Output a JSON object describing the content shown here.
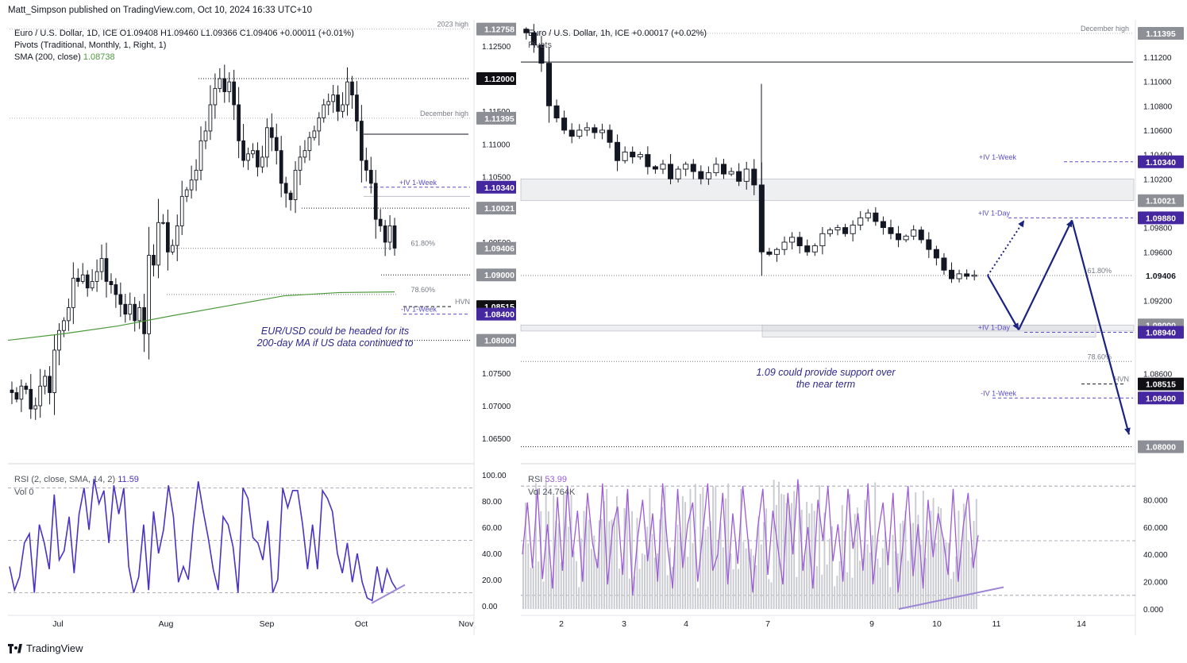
{
  "header": "Matt_Simpson published on TradingView.com, Oct 10, 2024 16:33 UTC+10",
  "footer": {
    "brand": "TradingView"
  },
  "colors": {
    "accent": "#3f2fb4",
    "rsi_line": "#4b32c3",
    "rsi_line_hourly": "#9b5cd6",
    "sma": "#4c9a3c",
    "label_dark": "#0f0f14",
    "label_grey": "#8c8f96",
    "label_purple": "#4527a0",
    "arrow": "#1a237e"
  },
  "left": {
    "legend": {
      "symbol": "Euro / U.S. Dollar, 1D, ICE",
      "ohlc": "O1.09408 H1.09460 L1.09366 C1.09406 +0.00011 (+0.01%)",
      "pivots": "Pivots (Traditional, Monthly, 1, Right, 1)",
      "sma_label": "SMA (200, close)",
      "sma_value": "1.08738"
    },
    "note": "EUR/USD could be headed for its 200-day MA if US data continued to",
    "price_axis": [
      "1.12500",
      "1.11500",
      "1.11000",
      "1.10500",
      "1.09500",
      "1.07500",
      "1.07000",
      "1.06500"
    ],
    "tags": [
      {
        "text": "1.12758",
        "style": "grey",
        "price": 1.12758
      },
      {
        "text": "1.12000",
        "style": "dark",
        "price": 1.12
      },
      {
        "text": "1.11395",
        "style": "grey",
        "price": 1.11395
      },
      {
        "text": "1.10340",
        "style": "purple",
        "price": 1.1034
      },
      {
        "text": "1.10021",
        "style": "grey",
        "price": 1.10021
      },
      {
        "text": "1.09406",
        "style": "grey",
        "price": 1.09406
      },
      {
        "text": "1.09000",
        "style": "grey",
        "price": 1.09
      },
      {
        "text": "1.08515",
        "style": "dark",
        "price": 1.08515
      },
      {
        "text": "1.08400",
        "style": "purple",
        "price": 1.084
      },
      {
        "text": "1.08000",
        "style": "grey",
        "price": 1.08
      }
    ],
    "line_labels": [
      "2023 high",
      "December high",
      "+IV 1-Week",
      "61.80%",
      "78.60%",
      "HVN",
      "-IV 1-Week"
    ],
    "time_axis": [
      "Jul",
      "Aug",
      "Sep",
      "Oct",
      "Nov"
    ],
    "rsi_legend": {
      "label": "RSI (2, close, SMA, 14, 2)",
      "value": "11.59",
      "vol": "Vol",
      "vol_value": "0"
    },
    "rsi_axis": [
      "100.00",
      "80.00",
      "60.00",
      "40.00",
      "20.00",
      "0.00"
    ],
    "rsi_values": [
      30,
      12,
      22,
      48,
      55,
      10,
      62,
      48,
      28,
      85,
      35,
      42,
      68,
      25,
      70,
      90,
      58,
      97,
      78,
      88,
      48,
      92,
      70,
      90,
      30,
      10,
      22,
      62,
      12,
      72,
      40,
      58,
      92,
      68,
      18,
      30,
      20,
      62,
      95,
      72,
      52,
      28,
      12,
      68,
      62,
      45,
      10,
      90,
      82,
      52,
      48,
      35,
      65,
      10,
      20,
      90,
      75,
      88,
      88,
      62,
      28,
      62,
      28,
      88,
      82,
      72,
      40,
      25,
      48,
      18,
      40,
      18,
      6,
      4,
      30,
      10,
      28,
      18,
      12
    ]
  },
  "right": {
    "legend": {
      "symbol": "Euro / U.S. Dollar, 1h, ICE",
      "ohlc": "+0.00017 (+0.02%)",
      "pivots": "Pivots"
    },
    "note": "1.09 could provide support over the near term",
    "price_axis": [
      "1.11200",
      "1.11000",
      "1.10800",
      "1.10600",
      "1.10400",
      "1.10200",
      "1.10000",
      "1.09800",
      "1.09600",
      "1.09200",
      "1.08950",
      "1.08600",
      "1.08000"
    ],
    "tags": [
      {
        "text": "1.11395",
        "style": "grey",
        "price": 1.11395
      },
      {
        "text": "1.10340",
        "style": "purple",
        "price": 1.1034
      },
      {
        "text": "1.10021",
        "style": "grey",
        "price": 1.10021
      },
      {
        "text": "1.09880",
        "style": "purple",
        "price": 1.0988
      },
      {
        "text": "1.09406",
        "style": "plain",
        "price": 1.09406
      },
      {
        "text": "1.09000",
        "style": "grey",
        "price": 1.09
      },
      {
        "text": "1.08940",
        "style": "purple",
        "price": 1.0894
      },
      {
        "text": "1.08515",
        "style": "dark",
        "price": 1.08515
      },
      {
        "text": "1.08400",
        "style": "purple",
        "price": 1.084
      },
      {
        "text": "1.08000",
        "style": "grey",
        "price": 1.08
      }
    ],
    "line_labels": [
      "December high",
      "+IV 1-Week",
      "+IV 1-Day",
      "61.80%",
      "+IV 1-Day",
      "78.60%",
      "HVN",
      "-IV 1-Week"
    ],
    "time_axis": [
      "2",
      "3",
      "4",
      "7",
      "9",
      "10",
      "11",
      "14"
    ],
    "rsi_legend": {
      "label": "RSI",
      "value": "53.99",
      "vol": "Vol",
      "vol_value": "24.764K"
    },
    "rsi_axis": [
      "80.000",
      "60.000",
      "40.000",
      "20.000",
      "0.000"
    ],
    "rsi_values": [
      40,
      78,
      30,
      88,
      22,
      62,
      15,
      82,
      28,
      90,
      38,
      72,
      20,
      85,
      48,
      30,
      92,
      18,
      60,
      75,
      25,
      88,
      10,
      52,
      80,
      35,
      70,
      20,
      92,
      45,
      15,
      88,
      30,
      62,
      78,
      20,
      55,
      92,
      28,
      40,
      85,
      18,
      70,
      33,
      90,
      52,
      12,
      60,
      88,
      25,
      72,
      45,
      18,
      85,
      40,
      95,
      28,
      60,
      15,
      80,
      50,
      90,
      35,
      62,
      20,
      88,
      44,
      70,
      28,
      92,
      18,
      55,
      78,
      32,
      85,
      12,
      48,
      90,
      24,
      62,
      15,
      80,
      38,
      70,
      52,
      25,
      88,
      20,
      60,
      85,
      30,
      54
    ]
  },
  "chart_data": [
    {
      "type": "candlestick",
      "title": "Euro / U.S. Dollar, 1D, ICE",
      "timeframe": "1D",
      "x_labels": [
        "Jul",
        "Aug",
        "Sep",
        "Oct",
        "Nov"
      ],
      "ylim": [
        1.0615,
        1.1285
      ],
      "close_path": [
        1.072,
        1.071,
        1.073,
        1.0725,
        1.0695,
        1.07,
        1.073,
        1.0745,
        1.072,
        1.0785,
        1.0815,
        1.083,
        1.085,
        1.0895,
        1.089,
        1.09,
        1.088,
        1.089,
        1.0905,
        1.0925,
        1.089,
        1.0885,
        1.087,
        1.0855,
        1.084,
        1.0855,
        1.083,
        1.085,
        1.081,
        1.093,
        1.0915,
        1.098,
        1.098,
        1.0935,
        1.0945,
        1.0975,
        1.102,
        1.103,
        1.1045,
        1.106,
        1.1105,
        1.112,
        1.116,
        1.1185,
        1.12,
        1.118,
        1.1195,
        1.116,
        1.1105,
        1.1075,
        1.1085,
        1.109,
        1.1065,
        1.108,
        1.1125,
        1.111,
        1.109,
        1.104,
        1.1025,
        1.1015,
        1.106,
        1.108,
        1.109,
        1.111,
        1.112,
        1.114,
        1.116,
        1.1165,
        1.1175,
        1.115,
        1.116,
        1.1195,
        1.1175,
        1.1135,
        1.1075,
        1.106,
        1.104,
        1.0985,
        1.0975,
        1.095,
        1.0975,
        1.0941
      ],
      "sma200_path": [
        1.08,
        1.081,
        1.0822,
        1.0838,
        1.0853,
        1.0868,
        1.0873,
        1.0874
      ],
      "levels": [
        {
          "name": "2023 high",
          "value": 1.12758
        },
        {
          "name": "Pivot level",
          "value": 1.12
        },
        {
          "name": "December high",
          "value": 1.11395
        },
        {
          "name": "+IV 1-Week",
          "value": 1.1034
        },
        {
          "name": "Pivot level",
          "value": 1.10021
        },
        {
          "name": "61.80%",
          "value": 1.09406
        },
        {
          "name": "Pivot level",
          "value": 1.09
        },
        {
          "name": "78.60%",
          "value": 1.087
        },
        {
          "name": "HVN",
          "value": 1.08515
        },
        {
          "name": "-IV 1-Week",
          "value": 1.084
        },
        {
          "name": "Pivot level",
          "value": 1.08
        }
      ],
      "last_close": 1.09406,
      "sma_200": 1.08738,
      "rsi_last": 11.59
    },
    {
      "type": "candlestick",
      "title": "Euro / U.S. Dollar, 1h, ICE",
      "timeframe": "1h",
      "x_labels": [
        "2",
        "3",
        "4",
        "7",
        "9",
        "10",
        "11",
        "14"
      ],
      "ylim": [
        1.0788,
        1.1148
      ],
      "close_path": [
        1.114,
        1.113,
        1.1115,
        1.108,
        1.107,
        1.106,
        1.1055,
        1.106,
        1.1062,
        1.1058,
        1.106,
        1.105,
        1.1035,
        1.1042,
        1.1038,
        1.104,
        1.103,
        1.1028,
        1.1032,
        1.102,
        1.1028,
        1.1032,
        1.1026,
        1.102,
        1.1025,
        1.1032,
        1.1024,
        1.1026,
        1.1018,
        1.1028,
        1.1015,
        1.096,
        1.0958,
        1.0962,
        1.0968,
        1.0972,
        1.0965,
        1.096,
        1.0965,
        1.0975,
        1.0978,
        1.098,
        1.0975,
        1.0982,
        1.0988,
        1.0992,
        1.0985,
        1.098,
        1.0975,
        1.097,
        1.0973,
        1.0978,
        1.097,
        1.0962,
        1.0955,
        1.0945,
        1.0938,
        1.0942,
        1.094,
        1.0941
      ],
      "spike_high": 1.1098,
      "levels": [
        {
          "name": "December high",
          "value": 1.11395
        },
        {
          "name": "Pivot level",
          "value": 1.112
        },
        {
          "name": "+IV 1-Week",
          "value": 1.1034
        },
        {
          "name": "Pivot level",
          "value": 1.10021
        },
        {
          "name": "+IV 1-Day",
          "value": 1.0988
        },
        {
          "name": "61.80%",
          "value": 1.09406
        },
        {
          "name": "Pivot level",
          "value": 1.09
        },
        {
          "name": "+IV 1-Day",
          "value": 1.0894
        },
        {
          "name": "78.60%",
          "value": 1.087
        },
        {
          "name": "HVN",
          "value": 1.08515
        },
        {
          "name": "-IV 1-Week",
          "value": 1.084
        },
        {
          "name": "Pivot level",
          "value": 1.08
        }
      ],
      "scenario_path": [
        1.09406,
        1.0896,
        1.0986,
        1.081
      ],
      "rsi_last": 53.99,
      "volume_last": "24.764K"
    }
  ]
}
